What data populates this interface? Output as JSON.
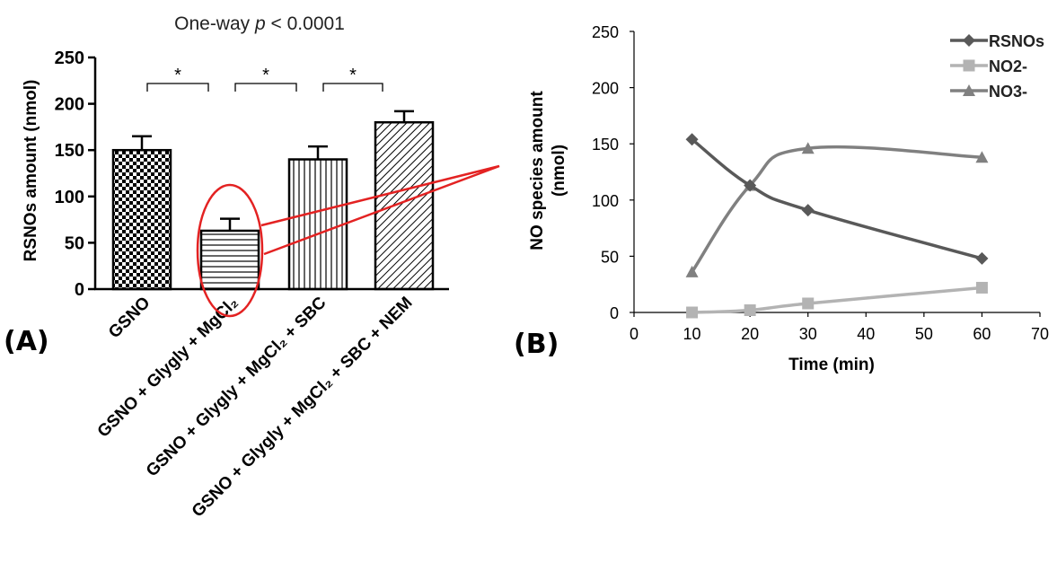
{
  "chart_data": [
    {
      "panel": "(A)",
      "type": "bar",
      "title_prefix": "One-way ",
      "title_italic": "p",
      "title_suffix": " < 0.0001",
      "ylabel": "RSNOs amount (nmol)",
      "ylim": [
        0,
        250
      ],
      "yticks": [
        0,
        50,
        100,
        150,
        200,
        250
      ],
      "categories": [
        "GSNO",
        "GSNO + Glygly + MgCl₂",
        "GSNO + Glygly + MgCl₂ + SBC",
        "GSNO + Glygly + MgCl₂ + SBC + NEM"
      ],
      "values": [
        150,
        63,
        140,
        180
      ],
      "errors": [
        15,
        13,
        14,
        12
      ],
      "patterns": [
        "checker",
        "horizontal",
        "vertical",
        "diagonal"
      ],
      "significance": [
        {
          "from": 0,
          "to": 1,
          "label": "*"
        },
        {
          "from": 1,
          "to": 2,
          "label": "*"
        },
        {
          "from": 2,
          "to": 3,
          "label": "*"
        }
      ],
      "annotation": "red ellipse around bar 2 with callout lines to panel (B)",
      "annotation_color": "#e32222"
    },
    {
      "panel": "(B)",
      "type": "line",
      "xlabel": "Time (min)",
      "ylabel": "NO species amount (nmol)",
      "xlim": [
        0,
        70
      ],
      "ylim": [
        0,
        250
      ],
      "xticks": [
        0,
        10,
        20,
        30,
        40,
        50,
        60,
        70
      ],
      "yticks": [
        0,
        50,
        100,
        150,
        200,
        250
      ],
      "legend_position": "top-right",
      "x": [
        10,
        20,
        30,
        60
      ],
      "series": [
        {
          "name": "RSNOs",
          "marker": "diamond",
          "color": "#595959",
          "values": [
            154,
            113,
            91,
            48
          ]
        },
        {
          "name": "NO2-",
          "marker": "square",
          "color": "#b3b3b3",
          "values": [
            0,
            2,
            8,
            22
          ]
        },
        {
          "name": "NO3-",
          "marker": "triangle",
          "color": "#808080",
          "values": [
            36,
            113,
            146,
            138
          ]
        }
      ]
    }
  ]
}
